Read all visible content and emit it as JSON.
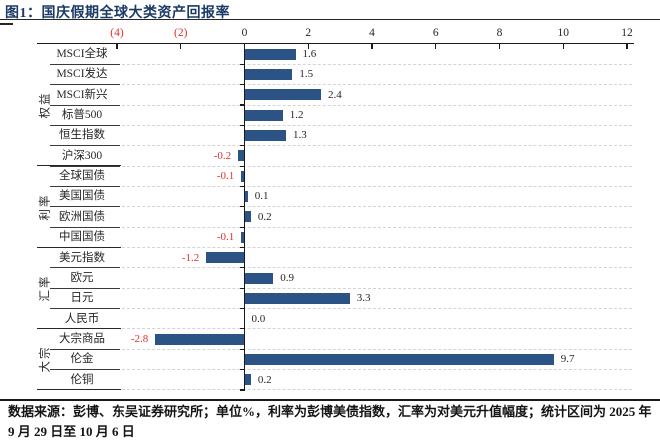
{
  "header": {
    "title": "图1：国庆假期全球大类资产回报率"
  },
  "chart_data": {
    "type": "bar",
    "orientation": "horizontal",
    "title": "国庆假期全球大类资产回报率",
    "unit": "%",
    "axis": {
      "ticks": [
        -4,
        -2,
        0,
        2,
        4,
        6,
        8,
        10,
        12
      ],
      "tick_labels": [
        "(4)",
        "(2)",
        "0",
        "2",
        "4",
        "6",
        "8",
        "10",
        "12"
      ],
      "min": -6.5,
      "max": 12.2,
      "position": "top",
      "grid": "dashed-horizontal"
    },
    "groups": [
      {
        "label": "权益",
        "items": [
          {
            "label": "MSCI全球",
            "value": 1.6
          },
          {
            "label": "MSCI发达",
            "value": 1.5
          },
          {
            "label": "MSCI新兴",
            "value": 2.4
          },
          {
            "label": "标普500",
            "value": 1.2
          },
          {
            "label": "恒生指数",
            "value": 1.3
          },
          {
            "label": "沪深300",
            "value": -0.2
          }
        ]
      },
      {
        "label": "利率",
        "items": [
          {
            "label": "全球国债",
            "value": -0.1
          },
          {
            "label": "美国国债",
            "value": 0.1
          },
          {
            "label": "欧洲国债",
            "value": 0.2
          },
          {
            "label": "中国国债",
            "value": -0.1
          }
        ]
      },
      {
        "label": "汇率",
        "items": [
          {
            "label": "美元指数",
            "value": -1.2
          },
          {
            "label": "欧元",
            "value": 0.9
          },
          {
            "label": "日元",
            "value": 3.3
          },
          {
            "label": "人民币",
            "value": 0.0
          }
        ]
      },
      {
        "label": "大宗",
        "items": [
          {
            "label": "大宗商品",
            "value": -2.8
          },
          {
            "label": "伦金",
            "value": 9.7
          },
          {
            "label": "伦铜",
            "value": 0.2
          }
        ]
      }
    ],
    "colors": {
      "bar": "#2b5385",
      "negative_label": "#e03030",
      "positive_label": "#262626",
      "title": "#1b3a66"
    }
  },
  "footer": {
    "line1": "数据来源：彭博、东吴证券研究所；单位%，利率为彭博美债指数，汇率为对美元升值幅度；统计区间为 2025 年",
    "line2": "9 月 29 日至 10 月 6 日"
  }
}
